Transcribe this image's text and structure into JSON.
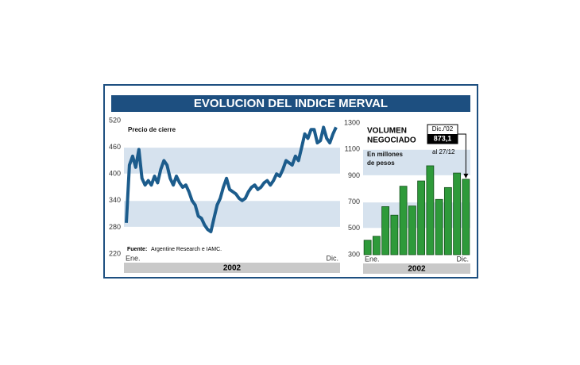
{
  "title": "EVOLUCION DEL INDICE MERVAL",
  "chart_data": [
    {
      "type": "line",
      "label": "Precio de cierre",
      "source_label": "Fuente:",
      "source": "Argentine Research e IAMC.",
      "period": "2002",
      "color": "#1c5c8c",
      "band_color": "#d6e2ee",
      "bands": true,
      "categories": [
        "Ene.",
        null,
        null,
        null,
        null,
        null,
        null,
        null,
        null,
        null,
        null,
        null,
        null,
        null,
        null,
        null,
        null,
        null,
        null,
        null,
        null,
        null,
        null,
        null,
        null,
        null,
        null,
        null,
        null,
        null,
        null,
        null,
        null,
        null,
        null,
        null,
        null,
        null,
        null,
        null,
        null,
        null,
        null,
        null,
        null,
        null,
        null,
        null,
        null,
        null,
        null,
        null,
        null,
        null,
        null,
        null,
        null,
        null,
        null,
        null,
        null,
        null,
        null,
        null,
        null,
        null,
        null,
        "Dic."
      ],
      "values": [
        290,
        420,
        440,
        415,
        455,
        390,
        375,
        385,
        375,
        395,
        380,
        410,
        430,
        420,
        390,
        375,
        395,
        380,
        370,
        375,
        360,
        340,
        330,
        305,
        300,
        285,
        275,
        270,
        300,
        330,
        345,
        370,
        390,
        365,
        360,
        355,
        345,
        340,
        345,
        360,
        370,
        375,
        365,
        370,
        380,
        385,
        375,
        385,
        400,
        395,
        410,
        430,
        425,
        420,
        440,
        430,
        460,
        490,
        480,
        500,
        500,
        470,
        475,
        505,
        480,
        470,
        490,
        505
      ],
      "ylim": [
        220,
        520
      ],
      "yticks": [
        520,
        460,
        400,
        340,
        280,
        220
      ]
    },
    {
      "type": "bar",
      "title_lines": [
        "VOLUMEN",
        "NEGOCIADO"
      ],
      "subtitle_lines": [
        "En millones",
        "de pesos"
      ],
      "period": "2002",
      "annotation": "Dic./'02",
      "annotation_note": "al 27/12",
      "color": "#2e9a3a",
      "band_color": "#d6e2ee",
      "bands": true,
      "categories": [
        "Ene.",
        null,
        null,
        null,
        null,
        null,
        null,
        null,
        null,
        null,
        null,
        "Dic."
      ],
      "values": [
        410,
        440,
        665,
        600,
        820,
        670,
        860,
        975,
        720,
        810,
        920,
        873.1
      ],
      "value_labels": [
        null,
        null,
        null,
        null,
        null,
        null,
        null,
        null,
        null,
        null,
        null,
        "873,1"
      ],
      "ylim": [
        300,
        1300
      ],
      "yticks": [
        1300,
        1100,
        900,
        700,
        500,
        300
      ]
    }
  ]
}
